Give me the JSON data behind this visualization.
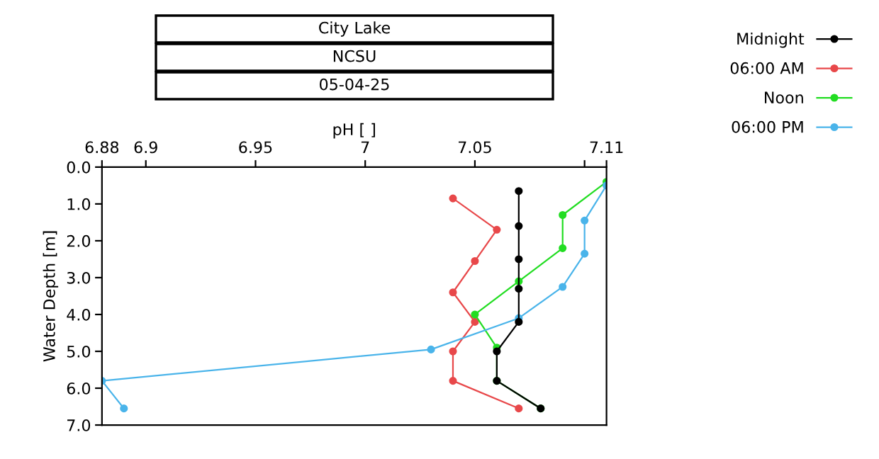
{
  "chart_data": {
    "type": "line",
    "title": "City Lake",
    "subtitle": "NCSU",
    "annotations": [
      "05-04-25"
    ],
    "xlabel": "pH [ ]",
    "ylabel": "Water Depth [m]",
    "xlim": [
      6.88,
      7.11
    ],
    "xticks": [
      6.88,
      6.9,
      6.95,
      7,
      7.05,
      {
        "value": 7.1,
        "label": null
      },
      7.11
    ],
    "ylim": [
      7,
      0
    ],
    "yticks": [
      {
        "value": 0,
        "label": "0.0"
      },
      {
        "value": 1,
        "label": "1.0"
      },
      {
        "value": 2,
        "label": "2.0"
      },
      {
        "value": 3,
        "label": "3.0"
      },
      {
        "value": 4,
        "label": "4.0"
      },
      {
        "value": 5,
        "label": "5.0"
      },
      {
        "value": 6,
        "label": "6.0"
      },
      {
        "value": 7,
        "label": "7.0"
      }
    ],
    "grid": false,
    "legend": "top right",
    "marker": "circle",
    "line_style": "solid",
    "series": [
      {
        "name": "06:00 AM",
        "color": "#e8484a",
        "x": [
          7.04,
          7.06,
          7.05,
          7.04,
          7.05,
          7.04,
          7.04,
          7.07
        ],
        "values": [
          0.85,
          1.7,
          2.55,
          3.4,
          4.2,
          5.0,
          5.8,
          6.55
        ]
      },
      {
        "name": "Noon",
        "color": "#22dd22",
        "x": [
          7.11,
          7.09,
          7.09,
          7.07,
          7.05,
          7.06,
          7.06,
          7.08
        ],
        "values": [
          0.4,
          1.3,
          2.2,
          3.1,
          4.0,
          4.9,
          5.8,
          6.55
        ]
      },
      {
        "name": "06:00 PM",
        "color": "#4ab4ea",
        "x": [
          7.11,
          7.1,
          7.1,
          7.09,
          7.07,
          7.03,
          6.88,
          6.89
        ],
        "values": [
          0.5,
          1.45,
          2.35,
          3.25,
          4.1,
          4.95,
          5.8,
          6.55
        ]
      },
      {
        "name": "Midnight",
        "color": "#000000",
        "x": [
          7.07,
          7.07,
          7.07,
          7.07,
          7.07,
          7.06,
          7.06,
          7.08
        ],
        "values": [
          0.65,
          1.6,
          2.5,
          3.3,
          4.2,
          5.0,
          5.8,
          6.55
        ]
      }
    ]
  }
}
